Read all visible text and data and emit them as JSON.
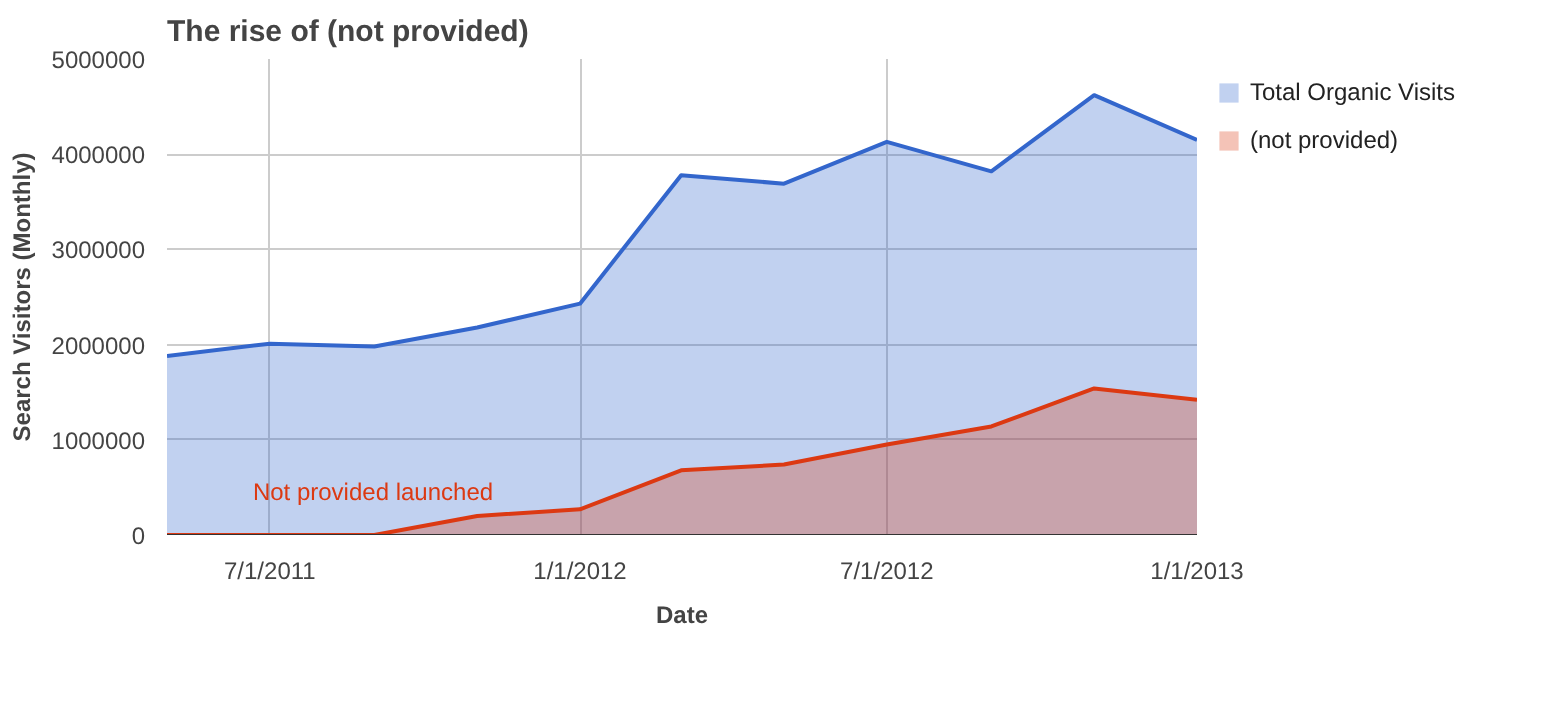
{
  "chart_data": {
    "type": "area",
    "title": "The rise of (not provided)",
    "xlabel": "Date",
    "ylabel": "Search Visitors (Monthly)",
    "x": [
      "2011-05-01",
      "2011-07-01",
      "2011-09-01",
      "2011-11-01",
      "2012-01-01",
      "2012-03-01",
      "2012-05-01",
      "2012-07-01",
      "2012-09-01",
      "2012-11-01",
      "2013-01-01"
    ],
    "series": [
      {
        "name": "Total Organic Visits",
        "color": "#3366cc",
        "values": [
          1880000,
          2010000,
          1980000,
          2180000,
          2430000,
          3780000,
          3690000,
          4130000,
          3820000,
          4620000,
          4150000
        ]
      },
      {
        "name": "(not provided)",
        "color": "#dc3912",
        "values": [
          0,
          0,
          0,
          200000,
          270000,
          680000,
          740000,
          950000,
          1140000,
          1540000,
          1420000
        ]
      }
    ],
    "xlim": [
      "2011-05-01",
      "2013-01-01"
    ],
    "xticks": [
      {
        "value": "2011-07-01",
        "label": "7/1/2011"
      },
      {
        "value": "2012-01-01",
        "label": "1/1/2012"
      },
      {
        "value": "2012-07-01",
        "label": "7/1/2012"
      },
      {
        "value": "2013-01-01",
        "label": "1/1/2013"
      }
    ],
    "ylim": [
      0,
      5000000
    ],
    "yticks": [
      0,
      1000000,
      2000000,
      3000000,
      4000000,
      5000000
    ],
    "grid": true,
    "legend": "right",
    "line_style": "solid",
    "annotations": [
      "Not provided launched"
    ]
  }
}
